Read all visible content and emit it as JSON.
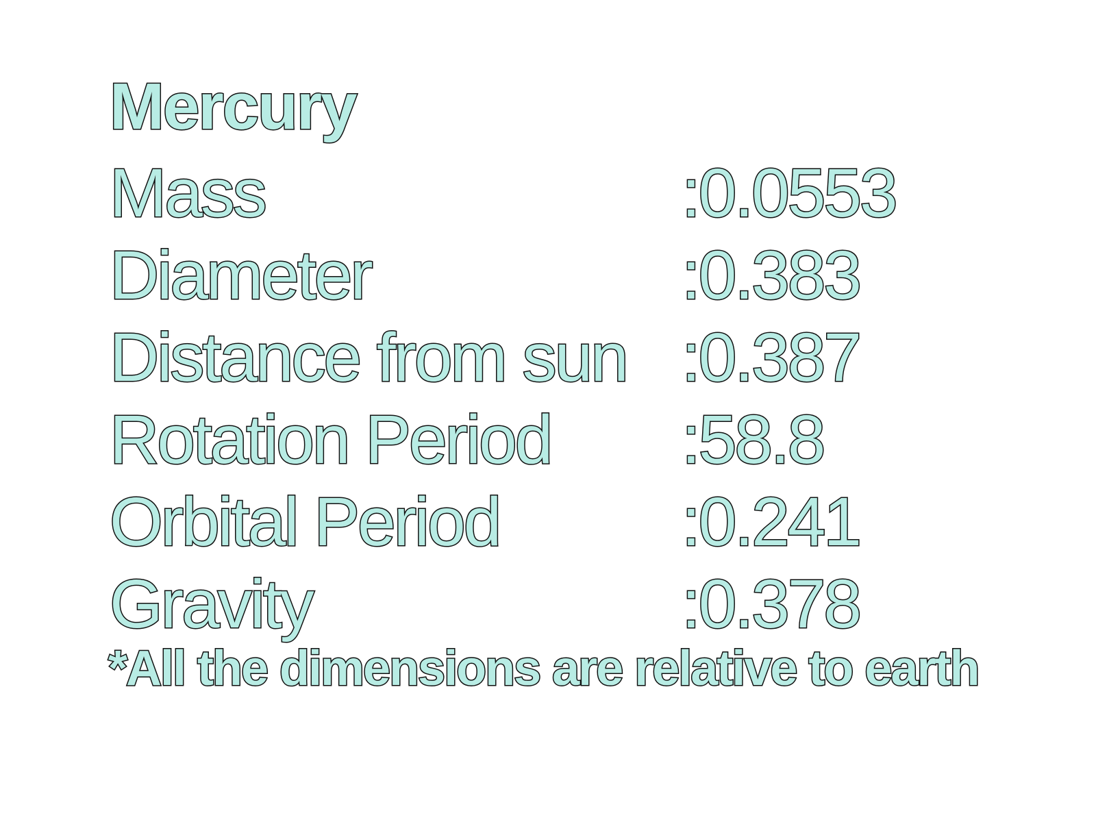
{
  "title": "Mercury",
  "rows": [
    {
      "label": "Mass",
      "value": ":0.0553"
    },
    {
      "label": "Diameter",
      "value": ":0.383"
    },
    {
      "label": "Distance from sun",
      "value": ":0.387"
    },
    {
      "label": "Rotation Period",
      "value": ":58.8"
    },
    {
      "label": "Orbital Period",
      "value": ":0.241"
    },
    {
      "label": "Gravity",
      "value": ":0.378"
    }
  ],
  "footnote": "*All the dimensions are relative to earth",
  "colors": {
    "text_fill": "#b8ece4",
    "text_outline": "#111111",
    "background": "#ffffff"
  }
}
